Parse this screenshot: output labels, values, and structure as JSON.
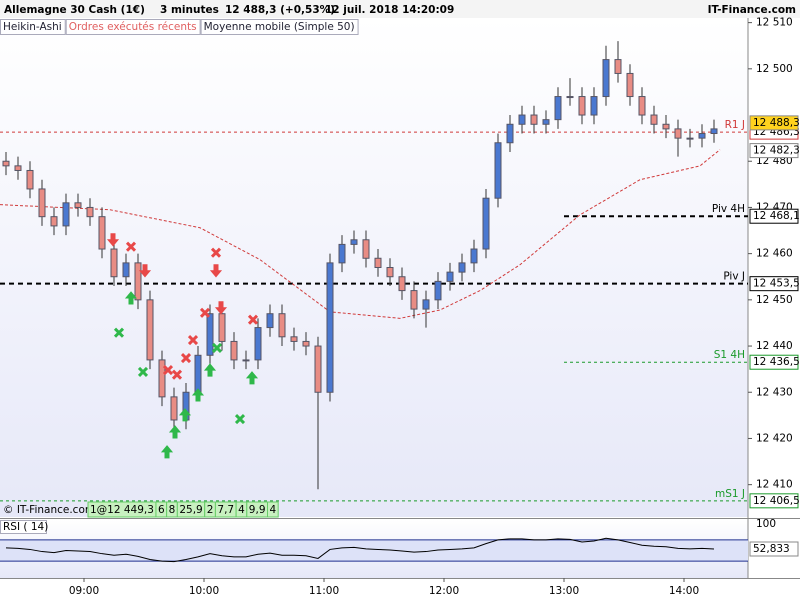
{
  "header": {
    "instrument": "Allemagne 30 Cash (1€)",
    "period": "3 minutes",
    "quote": "12 488,3 (+0,53%)",
    "datetime": "12 juil. 2018 14:20:09",
    "brand": "IT-Finance.com"
  },
  "tabs": [
    "Heikin-Ashi",
    "Ordres exécutés récents",
    "Moyenne mobile (Simple 50)"
  ],
  "copyright": "© IT-Finance.com",
  "order_strip": [
    "1@12 449,3",
    "6",
    "8",
    "25,9",
    "2",
    "7,7",
    "4",
    "9,9",
    "4"
  ],
  "chart_data": [
    {
      "type": "candlestick",
      "up_color": "#4a78d0",
      "down_color": "#e88c84",
      "xlim": [
        498,
        872
      ],
      "xticks": [
        {
          "value": 540,
          "label": "09:00"
        },
        {
          "value": 600,
          "label": "10:00"
        },
        {
          "value": 660,
          "label": "11:00"
        },
        {
          "value": 720,
          "label": "12:00"
        },
        {
          "value": 780,
          "label": "13:00"
        },
        {
          "value": 840,
          "label": "14:00"
        }
      ],
      "ylim": [
        12403,
        12511
      ],
      "yticks": [
        {
          "value": 12510,
          "label": "12 510"
        },
        {
          "value": 12500,
          "label": "12 500"
        },
        {
          "value": 12480,
          "label": "12 480"
        },
        {
          "value": 12470,
          "label": "12 470"
        },
        {
          "value": 12460,
          "label": "12 460"
        },
        {
          "value": 12450,
          "label": "12 450"
        },
        {
          "value": 12440,
          "label": "12 440"
        },
        {
          "value": 12430,
          "label": "12 430"
        },
        {
          "value": 12420,
          "label": "12 420"
        },
        {
          "value": 12410,
          "label": "12 410"
        }
      ],
      "x": [
        501,
        507,
        513,
        519,
        525,
        531,
        537,
        543,
        549,
        555,
        561,
        567,
        573,
        579,
        585,
        591,
        597,
        603,
        609,
        615,
        621,
        627,
        633,
        639,
        645,
        651,
        657,
        663,
        669,
        675,
        681,
        687,
        693,
        699,
        705,
        711,
        717,
        723,
        729,
        735,
        741,
        747,
        753,
        759,
        765,
        771,
        777,
        783,
        789,
        795,
        801,
        807,
        813,
        819,
        825,
        831,
        837,
        843,
        849,
        855
      ],
      "open": [
        12480,
        12479,
        12478,
        12474,
        12468,
        12466,
        12471,
        12470,
        12468,
        12461,
        12455,
        12458,
        12450,
        12437,
        12429,
        12424,
        12430,
        12438,
        12447,
        12441,
        12437,
        12437,
        12444,
        12447,
        12442,
        12441,
        12440,
        12430,
        12458,
        12462,
        12463,
        12459,
        12457,
        12455,
        12452,
        12448,
        12450,
        12454,
        12456,
        12458,
        12461,
        12472,
        12484,
        12488,
        12490,
        12488,
        12489,
        12494,
        12494,
        12490,
        12494,
        12502,
        12499,
        12494,
        12490,
        12488,
        12487,
        12485,
        12485,
        12486
      ],
      "high": [
        12482,
        12481,
        12480,
        12476,
        12470,
        12473,
        12473,
        12472,
        12470,
        12463,
        12460,
        12460,
        12452,
        12439,
        12431,
        12432,
        12440,
        12449,
        12449,
        12443,
        12439,
        12446,
        12449,
        12449,
        12444,
        12443,
        12442,
        12460,
        12464,
        12465,
        12465,
        12461,
        12459,
        12457,
        12454,
        12452,
        12456,
        12458,
        12460,
        12463,
        12474,
        12486,
        12490,
        12492,
        12492,
        12491,
        12496,
        12498,
        12496,
        12496,
        12505,
        12506,
        12501,
        12496,
        12492,
        12490,
        12489,
        12487,
        12488,
        12489
      ],
      "low": [
        12477,
        12476,
        12472,
        12466,
        12464,
        12464,
        12468,
        12466,
        12459,
        12453,
        12453,
        12448,
        12435,
        12427,
        12420,
        12422,
        12428,
        12436,
        12439,
        12435,
        12435,
        12435,
        12442,
        12440,
        12439,
        12438,
        12409,
        12428,
        12456,
        12460,
        12457,
        12455,
        12453,
        12450,
        12446,
        12444,
        12448,
        12452,
        12454,
        12456,
        12459,
        12470,
        12482,
        12486,
        12486,
        12486,
        12487,
        12492,
        12488,
        12488,
        12492,
        12497,
        12492,
        12488,
        12486,
        12485,
        12481,
        12483,
        12483,
        12484
      ],
      "close": [
        12479,
        12478,
        12474,
        12468,
        12466,
        12471,
        12470,
        12468,
        12461,
        12455,
        12458,
        12450,
        12437,
        12429,
        12424,
        12430,
        12438,
        12447,
        12441,
        12437,
        12437,
        12444,
        12447,
        12442,
        12441,
        12440,
        12430,
        12458,
        12462,
        12463,
        12459,
        12457,
        12455,
        12452,
        12448,
        12450,
        12454,
        12456,
        12458,
        12461,
        12472,
        12484,
        12488,
        12490,
        12488,
        12489,
        12494,
        12494,
        12490,
        12494,
        12502,
        12499,
        12494,
        12490,
        12488,
        12487,
        12485,
        12485,
        12486,
        12487
      ],
      "ma": {
        "color": "#d03a3a",
        "x": [
          498,
          553,
          598,
          628,
          663,
          698,
          718,
          738,
          758,
          788,
          818,
          848,
          858
        ],
        "values": [
          12470.6,
          12469.5,
          12465.6,
          12458.7,
          12447.4,
          12446,
          12447.8,
          12452,
          12457.6,
          12468.4,
          12476,
          12479,
          12482.5
        ]
      },
      "levels": [
        {
          "name": "R1 J",
          "value": 12486.3,
          "value_label": "12 486,3",
          "color": "#d03a3a",
          "from": 498
        },
        {
          "name": "Piv 4H",
          "value": 12468.1,
          "value_label": "12 468,1",
          "color": "#000000",
          "from": 780
        },
        {
          "name": "Piv J",
          "value": 12453.5,
          "value_label": "12 453,5",
          "color": "#000000",
          "from": 498
        },
        {
          "name": "S1 4H",
          "value": 12436.5,
          "value_label": "12 436,5",
          "color": "#1a9a2a",
          "from": 780
        },
        {
          "name": "mS1 J",
          "value": 12406.5,
          "value_label": "12 406,5",
          "color": "#1a9a2a",
          "from": 498
        }
      ],
      "price_boxes": [
        {
          "value": 12488.3,
          "label": "12 488,3",
          "color": "#ffd21e"
        },
        {
          "value": 12482.3,
          "label": "12 482,3",
          "color": "#ffffff"
        }
      ],
      "markers": [
        {
          "shape": "x",
          "color": "#e84848",
          "x": 563.5,
          "value": 12461.5
        },
        {
          "shape": "x",
          "color": "#e84848",
          "x": 582,
          "value": 12434.8
        },
        {
          "shape": "x",
          "color": "#e84848",
          "x": 586.5,
          "value": 12433.8
        },
        {
          "shape": "x",
          "color": "#e84848",
          "x": 591,
          "value": 12437.4
        },
        {
          "shape": "x",
          "color": "#e84848",
          "x": 594.5,
          "value": 12441.3
        },
        {
          "shape": "x",
          "color": "#e84848",
          "x": 600.5,
          "value": 12447.2
        },
        {
          "shape": "x",
          "color": "#e84848",
          "x": 606,
          "value": 12460.2
        },
        {
          "shape": "x",
          "color": "#e84848",
          "x": 624.5,
          "value": 12445.7
        },
        {
          "shape": "x",
          "color": "#2fb84a",
          "x": 557.5,
          "value": 12442.9
        },
        {
          "shape": "x",
          "color": "#2fb84a",
          "x": 569.5,
          "value": 12434.4
        },
        {
          "shape": "x",
          "color": "#2fb84a",
          "x": 606.5,
          "value": 12439.6
        },
        {
          "shape": "x",
          "color": "#2fb84a",
          "x": 618,
          "value": 12424.2
        },
        {
          "shape": "down",
          "color": "#e84848",
          "x": 554.5,
          "value": 12463
        },
        {
          "shape": "down",
          "color": "#e84848",
          "x": 570.5,
          "value": 12456.3
        },
        {
          "shape": "down",
          "color": "#e84848",
          "x": 606,
          "value": 12456.3
        },
        {
          "shape": "down",
          "color": "#e84848",
          "x": 608.5,
          "value": 12448.3
        },
        {
          "shape": "up",
          "color": "#2fb84a",
          "x": 563.5,
          "value": 12450.4
        },
        {
          "shape": "up",
          "color": "#2fb84a",
          "x": 581.5,
          "value": 12417.1
        },
        {
          "shape": "up",
          "color": "#2fb84a",
          "x": 585.5,
          "value": 12421.4
        },
        {
          "shape": "up",
          "color": "#2fb84a",
          "x": 590.5,
          "value": 12425.1
        },
        {
          "shape": "up",
          "color": "#2fb84a",
          "x": 597,
          "value": 12429.4
        },
        {
          "shape": "up",
          "color": "#2fb84a",
          "x": 603,
          "value": 12434.8
        },
        {
          "shape": "up",
          "color": "#2fb84a",
          "x": 624,
          "value": 12433.1
        }
      ]
    },
    {
      "type": "line",
      "title": "RSI ( 14)",
      "color": "#000000",
      "band_color": "#1f2f8f",
      "ylim": [
        0,
        100
      ],
      "yticks": [
        100
      ],
      "bands": [
        70,
        30
      ],
      "x": [
        501,
        507,
        513,
        519,
        525,
        531,
        537,
        543,
        549,
        555,
        561,
        567,
        573,
        579,
        585,
        591,
        597,
        603,
        609,
        615,
        621,
        627,
        633,
        639,
        645,
        651,
        657,
        663,
        669,
        675,
        681,
        687,
        693,
        699,
        705,
        711,
        717,
        723,
        729,
        735,
        741,
        747,
        753,
        759,
        765,
        771,
        777,
        783,
        789,
        795,
        801,
        807,
        813,
        819,
        825,
        831,
        837,
        843,
        849,
        855
      ],
      "values": [
        55,
        54,
        52,
        48,
        46,
        50,
        49,
        48,
        44,
        41,
        43,
        39,
        33,
        30,
        29,
        33,
        38,
        44,
        40,
        38,
        38,
        43,
        45,
        41,
        41,
        40,
        35,
        52,
        55,
        56,
        53,
        52,
        51,
        49,
        47,
        48,
        51,
        52,
        53,
        55,
        63,
        70,
        72,
        72,
        70,
        70,
        72,
        71,
        66,
        68,
        73,
        70,
        65,
        60,
        58,
        57,
        54,
        53,
        54,
        52.833
      ],
      "last_label": "52,833"
    }
  ]
}
